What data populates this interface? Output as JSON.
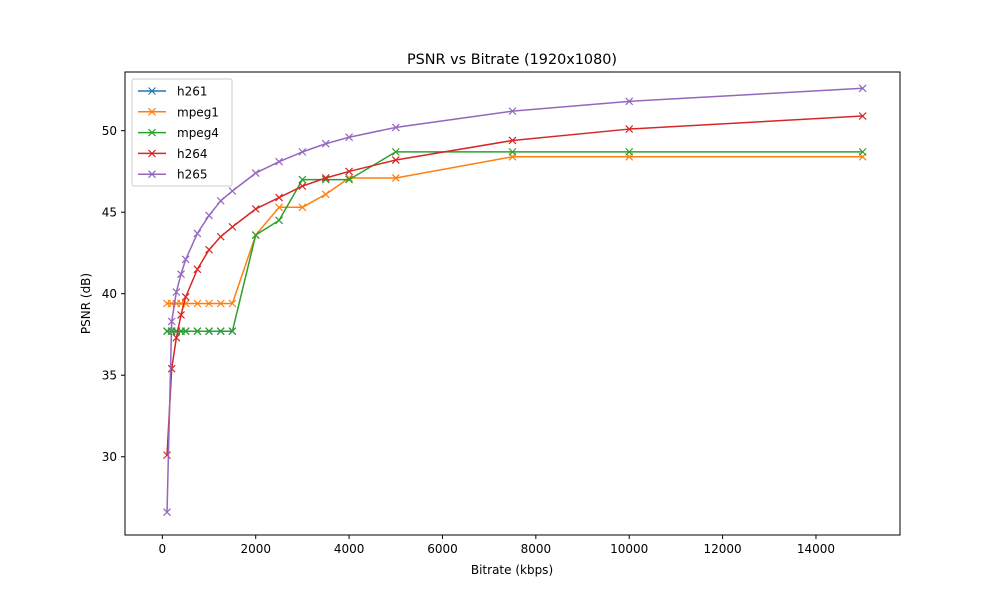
{
  "chart_data": {
    "type": "line",
    "title": "PSNR vs Bitrate (1920x1080)",
    "xlabel": "Bitrate (kbps)",
    "ylabel": "PSNR (dB)",
    "xlim": [
      -800,
      15800
    ],
    "ylim": [
      25.2,
      53.6
    ],
    "xticks": [
      0,
      2000,
      4000,
      6000,
      8000,
      10000,
      12000,
      14000
    ],
    "yticks": [
      30,
      35,
      40,
      45,
      50
    ],
    "grid": false,
    "legend_position": "upper left",
    "marker": "x",
    "series": [
      {
        "name": "h261",
        "color": "#1f77b4",
        "x": [
          100,
          200,
          300,
          400,
          500,
          750,
          1000,
          1250,
          1500
        ],
        "y": [
          37.7,
          37.7,
          37.7,
          37.7,
          37.7,
          37.7,
          37.7,
          37.7,
          37.7
        ]
      },
      {
        "name": "mpeg1",
        "color": "#ff7f0e",
        "x": [
          100,
          200,
          300,
          400,
          500,
          750,
          1000,
          1250,
          1500,
          2000,
          2500,
          3000,
          3500,
          4000,
          5000,
          7500,
          10000,
          15000
        ],
        "y": [
          39.4,
          39.4,
          39.4,
          39.4,
          39.4,
          39.4,
          39.4,
          39.4,
          39.4,
          43.6,
          45.3,
          45.3,
          46.1,
          47.1,
          47.1,
          48.4,
          48.4,
          48.4
        ]
      },
      {
        "name": "mpeg4",
        "color": "#2ca02c",
        "x": [
          100,
          200,
          300,
          400,
          500,
          750,
          1000,
          1250,
          1500,
          2000,
          2500,
          3000,
          3500,
          4000,
          5000,
          7500,
          10000,
          15000
        ],
        "y": [
          37.7,
          37.7,
          37.7,
          37.7,
          37.7,
          37.7,
          37.7,
          37.7,
          37.7,
          43.6,
          44.5,
          47.0,
          47.0,
          47.0,
          48.7,
          48.7,
          48.7,
          48.7
        ]
      },
      {
        "name": "h264",
        "color": "#d62728",
        "x": [
          100,
          200,
          300,
          400,
          500,
          750,
          1000,
          1250,
          1500,
          2000,
          2500,
          3000,
          3500,
          4000,
          5000,
          7500,
          10000,
          15000
        ],
        "y": [
          30.1,
          35.4,
          37.3,
          38.7,
          39.8,
          41.5,
          42.7,
          43.5,
          44.1,
          45.2,
          45.9,
          46.6,
          47.1,
          47.5,
          48.2,
          49.4,
          50.1,
          50.9
        ]
      },
      {
        "name": "h265",
        "color": "#9467bd",
        "x": [
          100,
          200,
          300,
          400,
          500,
          750,
          1000,
          1250,
          1500,
          2000,
          2500,
          3000,
          3500,
          4000,
          5000,
          7500,
          10000,
          15000
        ],
        "y": [
          26.6,
          38.3,
          40.1,
          41.2,
          42.1,
          43.7,
          44.8,
          45.7,
          46.3,
          47.4,
          48.1,
          48.7,
          49.2,
          49.6,
          50.2,
          51.2,
          51.8,
          52.6
        ]
      }
    ]
  }
}
